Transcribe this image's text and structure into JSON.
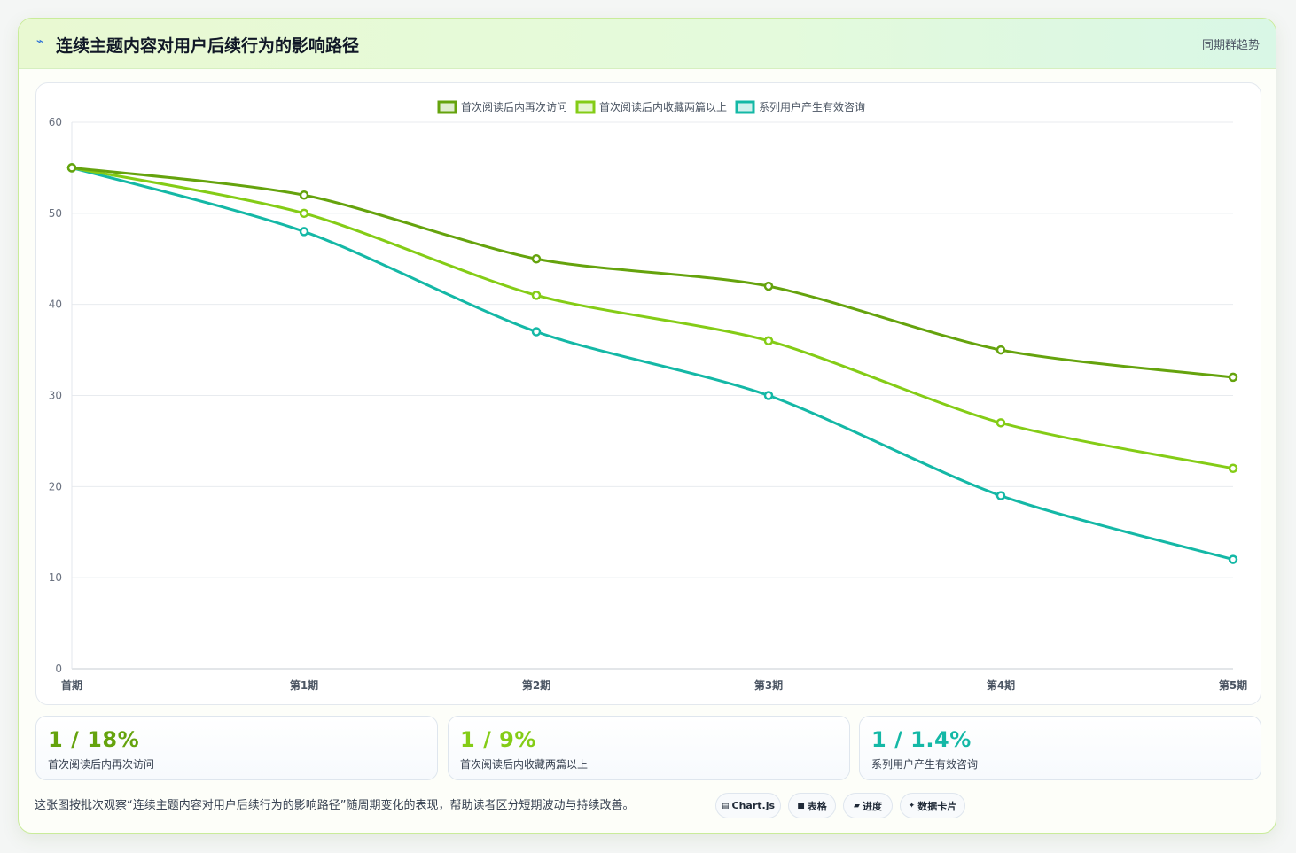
{
  "header": {
    "icon": "line-chart-icon",
    "title": "连续主题内容对用户后续行为的影响路径",
    "link": "同期群趋势"
  },
  "chart_data": {
    "type": "line",
    "categories": [
      "首期",
      "第1期",
      "第2期",
      "第3期",
      "第4期",
      "第5期"
    ],
    "ylim": [
      0,
      60
    ],
    "yticks": [
      0,
      10,
      20,
      30,
      40,
      50,
      60
    ],
    "grid": true,
    "legend": "top-center",
    "series": [
      {
        "name": "首次阅读后内再次访问",
        "color": "#65a30d",
        "values": [
          55,
          52,
          45,
          42,
          35,
          32
        ]
      },
      {
        "name": "首次阅读后内收藏两篇以上",
        "color": "#84cc16",
        "values": [
          55,
          50,
          41,
          36,
          27,
          22
        ]
      },
      {
        "name": "系列用户产生有效咨询",
        "color": "#14b8a6",
        "values": [
          55,
          48,
          37,
          30,
          19,
          12
        ]
      }
    ]
  },
  "stats": [
    {
      "value": "1 / 18%",
      "label": "首次阅读后内再次访问",
      "color": "#65a30d"
    },
    {
      "value": "1 / 9%",
      "label": "首次阅读后内收藏两篇以上",
      "color": "#84cc16"
    },
    {
      "value": "1 / 1.4%",
      "label": "系列用户产生有效咨询",
      "color": "#14b8a6"
    }
  ],
  "footnote": "这张图按批次观察“连续主题内容对用户后续行为的影响路径”随周期变化的表现，帮助读者区分短期波动与持续改善。",
  "pills": [
    {
      "icon": "chart-icon",
      "glyph": "▤",
      "label": "Chart.js"
    },
    {
      "icon": "table-icon",
      "glyph": "■",
      "label": "表格"
    },
    {
      "icon": "progress-icon",
      "glyph": "▰",
      "label": "进度"
    },
    {
      "icon": "sparkle-icon",
      "glyph": "✦",
      "label": "数据卡片"
    }
  ]
}
